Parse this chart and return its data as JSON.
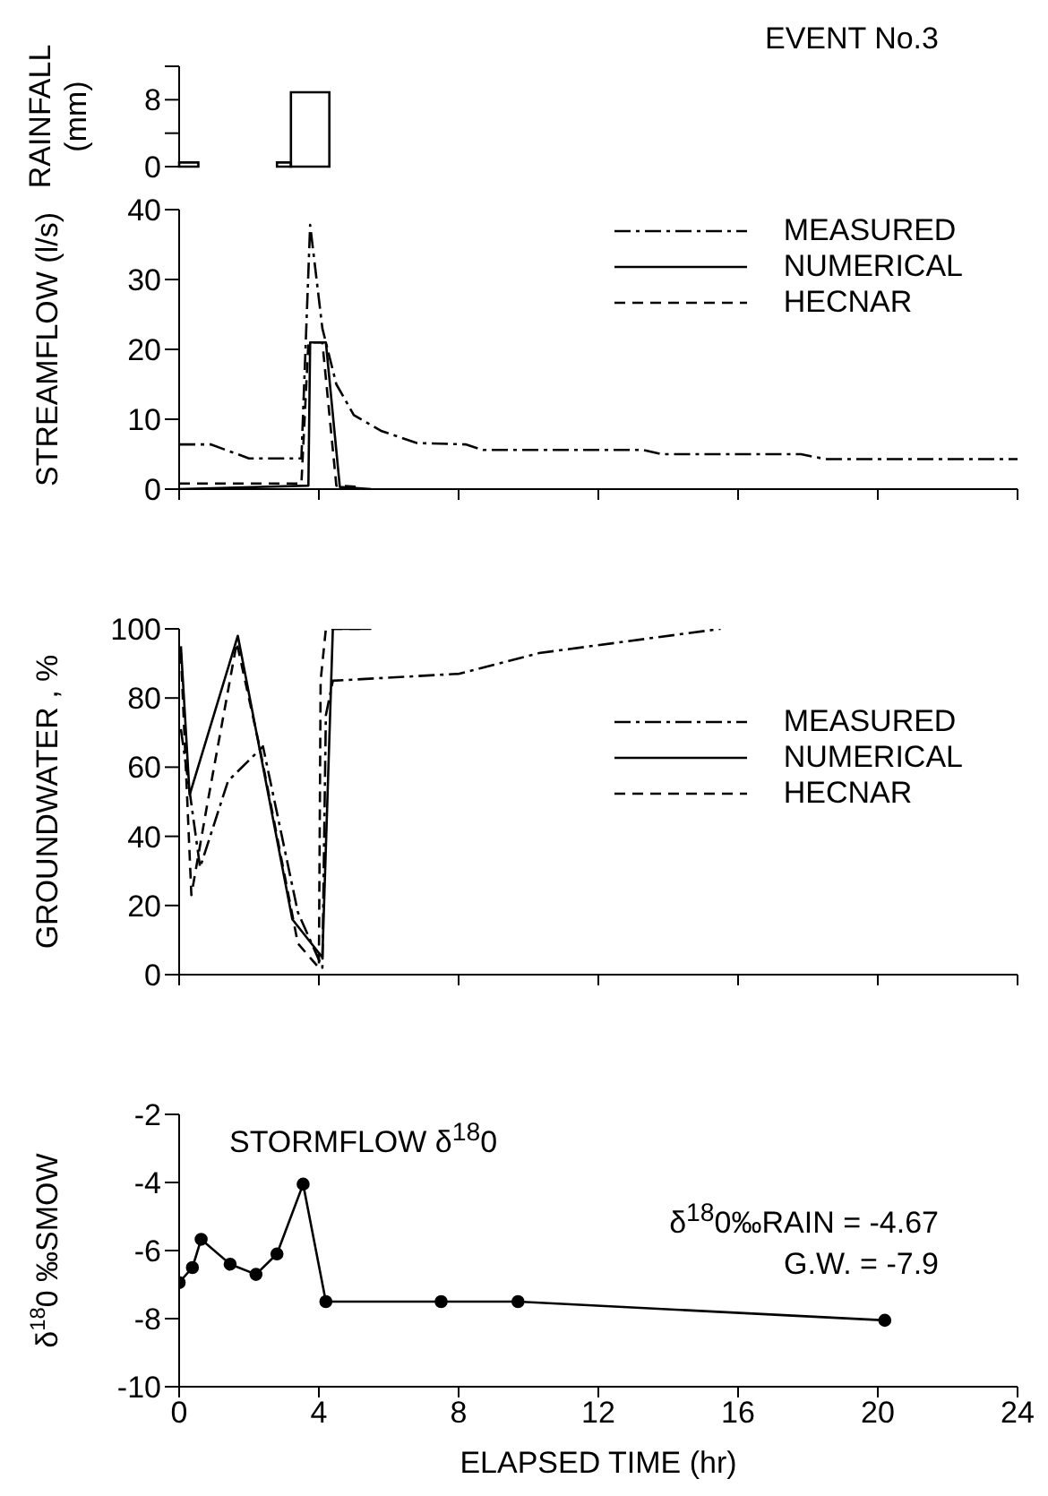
{
  "chart_data": [
    {
      "type": "histogram",
      "ylabel": "RAINFALL (mm)",
      "annotations": [
        "EVENT No.3"
      ],
      "bins": [
        0,
        0.55,
        2.8,
        3.2,
        4.3
      ],
      "values": [
        0.5,
        0,
        0.5,
        8.9
      ],
      "color": "#000000",
      "xlim": [
        0,
        24
      ],
      "ylim": [
        0,
        12
      ],
      "yticks": [
        0,
        {
          "value": 4,
          "label": null
        },
        8,
        {
          "value": 12,
          "label": null
        }
      ],
      "tick_labels": "y",
      "grid": false
    },
    {
      "type": "line",
      "ylabel": "STREAMFLOW (l/s)",
      "xlim": [
        0,
        24
      ],
      "xticks": [
        {
          "value": 0,
          "label": null
        },
        {
          "value": 4,
          "label": null
        },
        {
          "value": 8,
          "label": null
        },
        {
          "value": 12,
          "label": null
        },
        {
          "value": 16,
          "label": null
        },
        {
          "value": 20,
          "label": null
        },
        {
          "value": 24,
          "label": null
        }
      ],
      "ylim": [
        0,
        40
      ],
      "yticks": [
        0,
        10,
        20,
        30,
        40
      ],
      "tick_labels": "y",
      "legend": "top right",
      "marker": "none",
      "grid": false,
      "series": [
        {
          "name": "MEASURED",
          "color": "#000000",
          "line_style": "dashdot",
          "x": [
            0,
            0.9,
            2,
            3.5,
            3.75,
            4.1,
            4.5,
            5,
            5.8,
            6.8,
            8.2,
            8.7,
            10.3,
            13.3,
            13.8,
            17.8,
            18.5,
            24
          ],
          "values": [
            6.4,
            6.4,
            4.4,
            4.4,
            37.8,
            23,
            15,
            10.6,
            8.3,
            6.6,
            6.4,
            5.6,
            5.6,
            5.6,
            5,
            5,
            4.3,
            4.3
          ]
        },
        {
          "name": "NUMERICAL",
          "color": "#000000",
          "line_style": "solid",
          "x": [
            0,
            3.7,
            3.75,
            4.2,
            4.6,
            5.5
          ],
          "values": [
            0,
            0.5,
            21,
            21,
            0.3,
            0
          ]
        },
        {
          "name": "HECNAR",
          "color": "#000000",
          "line_style": "dashed",
          "x": [
            0,
            3.5,
            3.7,
            4.1,
            4.5,
            5.2
          ],
          "values": [
            0.8,
            0.8,
            21,
            21,
            0.5,
            0.3
          ]
        }
      ]
    },
    {
      "type": "line",
      "ylabel": "GROUNDWATER , %",
      "xlim": [
        0,
        24
      ],
      "xticks": [
        {
          "value": 0,
          "label": null
        },
        {
          "value": 4,
          "label": null
        },
        {
          "value": 8,
          "label": null
        },
        {
          "value": 12,
          "label": null
        },
        {
          "value": 16,
          "label": null
        },
        {
          "value": 20,
          "label": null
        },
        {
          "value": 24,
          "label": null
        }
      ],
      "ylim": [
        0,
        100
      ],
      "yticks": [
        0,
        20,
        40,
        60,
        80,
        100
      ],
      "tick_labels": "y",
      "legend": "right",
      "marker": "none",
      "grid": false,
      "series": [
        {
          "name": "MEASURED",
          "color": "#000000",
          "line_style": "dashdot",
          "x": [
            0.05,
            0.3,
            0.6,
            1.4,
            2.4,
            3.4,
            4.1,
            4.2,
            4.4,
            8,
            10.3,
            15.5
          ],
          "values": [
            71,
            53,
            31,
            56,
            66,
            18,
            2,
            75,
            85,
            87,
            93,
            100
          ]
        },
        {
          "name": "NUMERICAL",
          "color": "#000000",
          "line_style": "solid",
          "x": [
            0.05,
            0.3,
            1.68,
            3.24,
            4.1,
            4.4,
            5.5
          ],
          "values": [
            95,
            52,
            98,
            16,
            5,
            100,
            100
          ]
        },
        {
          "name": "HECNAR",
          "color": "#000000",
          "line_style": "dashed",
          "x": [
            0.05,
            0.35,
            0.8,
            1.65,
            2.3,
            3.4,
            4,
            4.05,
            4.2,
            5.3
          ],
          "values": [
            93,
            23,
            49,
            96,
            66,
            9,
            2,
            85,
            100,
            100
          ]
        }
      ]
    },
    {
      "type": "line",
      "title": "STORMFLOW δ$^{18}$0",
      "ylabel": "δ$^{18}$0 ‰SMOW",
      "xlabel": "ELAPSED TIME (hr)",
      "annotations": [
        "δ$^{18}$0‰RAIN = -4.67",
        "G.W. = -7.9"
      ],
      "xlim": [
        0,
        24
      ],
      "xticks": [
        0,
        4,
        8,
        12,
        16,
        20,
        24
      ],
      "ylim": [
        -10,
        -2
      ],
      "yticks": [
        -10,
        -8,
        -6,
        -4,
        -2
      ],
      "marker": "circle",
      "grid": false,
      "series": [
        {
          "color": "#000000",
          "line_style": "solid",
          "x": [
            0,
            0.38,
            0.63,
            1.46,
            2.2,
            2.8,
            3.55,
            4.2,
            7.5,
            9.7,
            20.2
          ],
          "values": [
            -6.94,
            -6.5,
            -5.67,
            -6.4,
            -6.7,
            -6.1,
            -4.05,
            -7.5,
            -7.5,
            -7.5,
            -8.05
          ]
        }
      ]
    }
  ]
}
